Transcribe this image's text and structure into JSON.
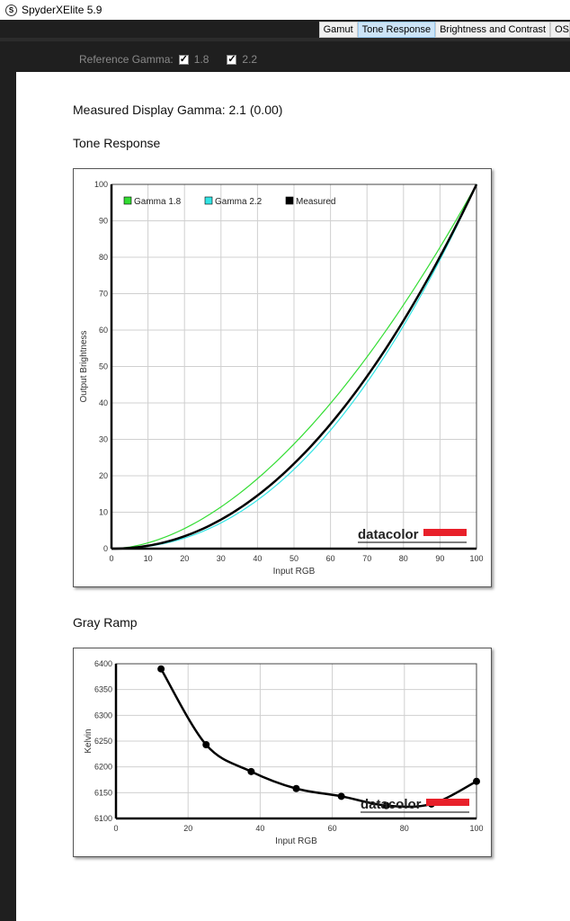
{
  "window": {
    "title": "SpyderXElite 5.9",
    "icon": "spyder-s-logo"
  },
  "tabs": [
    {
      "label": "Gamut",
      "active": false
    },
    {
      "label": "Tone Response",
      "active": true
    },
    {
      "label": "Brightness and Contrast",
      "active": false
    },
    {
      "label": "OS",
      "active": false
    }
  ],
  "reference_gamma": {
    "label": "Reference Gamma:",
    "options": [
      {
        "label": "1.8",
        "checked": true
      },
      {
        "label": "2.2",
        "checked": true
      }
    ]
  },
  "measured_gamma_text": "Measured Display Gamma: 2.1 (0.00)",
  "tone_title": "Tone Response",
  "gray_title": "Gray Ramp",
  "brand": "datacolor",
  "chart_data": [
    {
      "type": "line",
      "xlabel": "Input RGB",
      "ylabel": "Output Brightness",
      "xlim": [
        0,
        100
      ],
      "ylim": [
        0,
        100
      ],
      "xticks": [
        0,
        10,
        20,
        30,
        40,
        50,
        60,
        70,
        80,
        90,
        100
      ],
      "yticks": [
        0,
        10,
        20,
        30,
        40,
        50,
        60,
        70,
        80,
        90,
        100
      ],
      "grid": true,
      "legend": "top-left",
      "series": [
        {
          "name": "Gamma 1.8",
          "gamma": 1.8,
          "color": "#33dd33"
        },
        {
          "name": "Gamma 2.2",
          "gamma": 2.2,
          "color": "#33e5e5"
        },
        {
          "name": "Measured",
          "gamma": 2.1,
          "color": "#000000"
        }
      ]
    },
    {
      "type": "line",
      "xlabel": "Input RGB",
      "ylabel": "Kelvin",
      "xlim": [
        0,
        100
      ],
      "ylim": [
        6100,
        6400
      ],
      "xticks": [
        0,
        20,
        40,
        60,
        80,
        100
      ],
      "yticks": [
        6100,
        6150,
        6200,
        6250,
        6300,
        6350,
        6400
      ],
      "grid": true,
      "x": [
        12.5,
        25,
        37.5,
        50,
        62.5,
        75,
        87.5,
        100
      ],
      "y": [
        6390,
        6243,
        6191,
        6158,
        6143,
        6125,
        6128,
        6172
      ],
      "color": "#000000"
    }
  ]
}
